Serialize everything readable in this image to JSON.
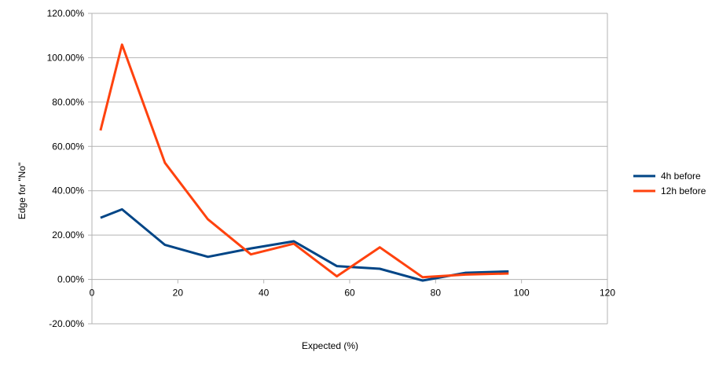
{
  "chart_data": {
    "type": "line",
    "title": "",
    "xlabel": "Expected (%)",
    "ylabel": "Edge for \"No\"",
    "xlim": [
      0,
      120
    ],
    "ylim": [
      -20,
      120
    ],
    "x_ticks": [
      0,
      20,
      40,
      60,
      80,
      100,
      120
    ],
    "y_ticks": [
      -20,
      0,
      20,
      40,
      60,
      80,
      100,
      120
    ],
    "y_tick_labels": [
      "-20.00%",
      "0.00%",
      "20.00%",
      "40.00%",
      "60.00%",
      "80.00%",
      "100.00%",
      "120.00%"
    ],
    "grid": "horizontal",
    "legend_position": "right",
    "series": [
      {
        "name": "4h before",
        "color": "#004586",
        "x": [
          2,
          7,
          17,
          27,
          37,
          47,
          57,
          67,
          77,
          87,
          97
        ],
        "y": [
          27.8,
          31.6,
          15.6,
          10.2,
          14.0,
          17.2,
          6.0,
          4.8,
          -0.5,
          3.0,
          3.6
        ]
      },
      {
        "name": "12h before",
        "color": "#ff420e",
        "x": [
          2,
          7,
          17,
          27,
          37,
          47,
          57,
          67,
          77,
          87,
          97
        ],
        "y": [
          67.2,
          105.9,
          52.6,
          27.1,
          11.3,
          16.1,
          1.4,
          14.5,
          1.0,
          2.2,
          2.7
        ]
      }
    ]
  }
}
